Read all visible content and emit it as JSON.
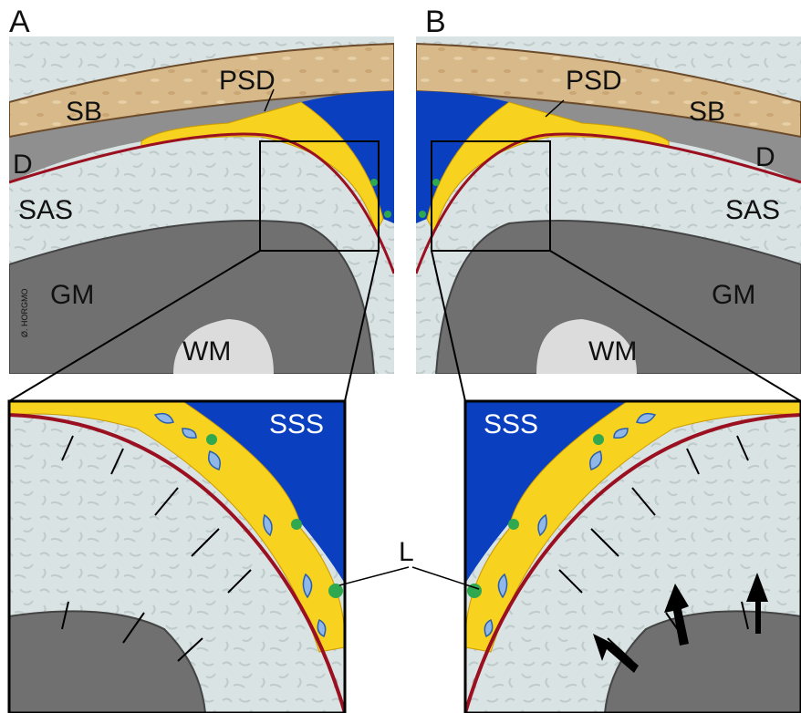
{
  "panels": [
    {
      "letter": "A",
      "labels": {
        "bone": "SB",
        "psd": "PSD",
        "dura": "D",
        "sas": "SAS",
        "gm": "GM",
        "wm": "WM"
      },
      "inset_label": "SSS"
    },
    {
      "letter": "B",
      "labels": {
        "bone": "SB",
        "psd": "PSD",
        "dura": "D",
        "sas": "SAS",
        "gm": "GM",
        "wm": "WM"
      },
      "inset_label": "SSS"
    }
  ],
  "lymph_label": "L",
  "signature": "Ø. HORGMO"
}
